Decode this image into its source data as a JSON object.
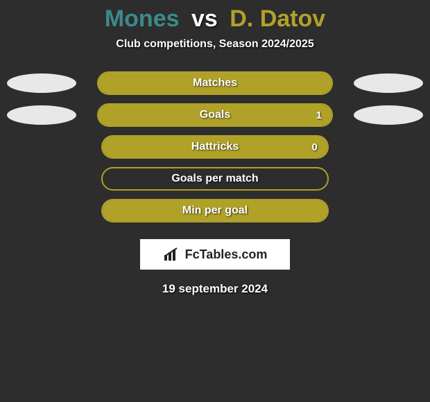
{
  "title": {
    "player1": "Mones",
    "vs": "vs",
    "player2": "D. Datov"
  },
  "subtitle": "Club competitions, Season 2024/2025",
  "colors": {
    "bar_fill": "#b0a229",
    "bar_border": "#b0a229",
    "bar_empty": "#2d2d2d",
    "bg": "#2d2d2d",
    "blob": "#e8e8e8",
    "p1": "#3c8a8a",
    "p2": "#b0a229"
  },
  "stats": [
    {
      "label": "Matches",
      "left_blob": true,
      "right_blob": true,
      "left_val": "",
      "right_val": "",
      "left_pct": 0,
      "right_pct": 100
    },
    {
      "label": "Goals",
      "left_blob": true,
      "right_blob": true,
      "left_val": "",
      "right_val": "1",
      "left_pct": 0,
      "right_pct": 100
    },
    {
      "label": "Hattricks",
      "left_blob": false,
      "right_blob": false,
      "left_val": "",
      "right_val": "0",
      "left_pct": 0,
      "right_pct": 100
    },
    {
      "label": "Goals per match",
      "left_blob": false,
      "right_blob": false,
      "left_val": "",
      "right_val": "",
      "left_pct": 0,
      "right_pct": 0
    },
    {
      "label": "Min per goal",
      "left_blob": false,
      "right_blob": false,
      "left_val": "",
      "right_val": "",
      "left_pct": 0,
      "right_pct": 100
    }
  ],
  "footer_brand": "FcTables.com",
  "date": "19 september 2024"
}
